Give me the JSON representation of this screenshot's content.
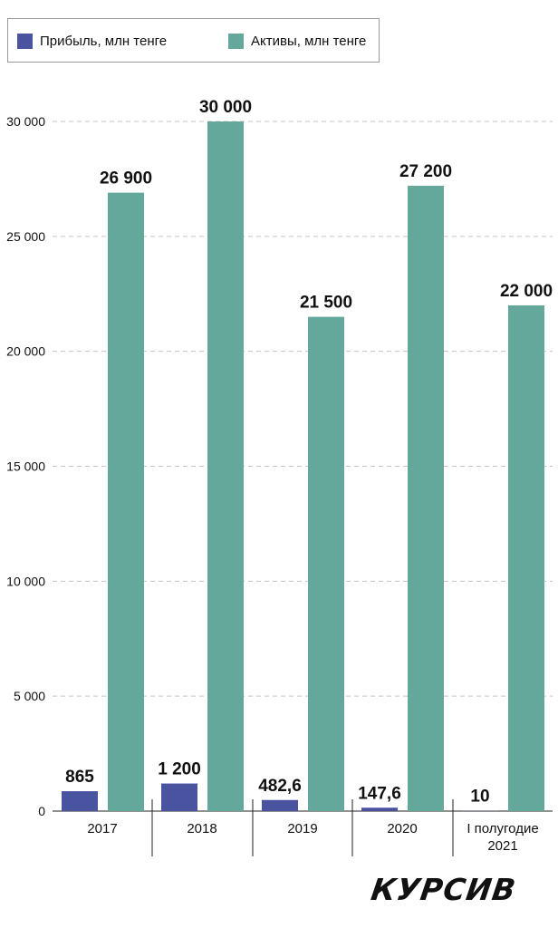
{
  "legend": [
    {
      "label": "Прибыль, млн тенге",
      "color": "#4a53a0"
    },
    {
      "label": "Активы, млн тенге",
      "color": "#64a79b"
    }
  ],
  "logo": "КУРСИВ",
  "chart_data": {
    "type": "bar",
    "categories": [
      "2017",
      "2018",
      "2019",
      "2020",
      "I полугодие|2021"
    ],
    "series": [
      {
        "name": "Прибыль, млн тенге",
        "values": [
          865,
          1200,
          482.6,
          147.6,
          10
        ],
        "labels": [
          "865",
          "1 200",
          "482,6",
          "147,6",
          "10"
        ],
        "color": "#4a53a0"
      },
      {
        "name": "Активы, млн тенге",
        "values": [
          26900,
          30000,
          21500,
          27200,
          22000
        ],
        "labels": [
          "26 900",
          "30 000",
          "21 500",
          "27 200",
          "22 000"
        ],
        "color": "#64a79b"
      }
    ],
    "yticks": [
      0,
      5000,
      10000,
      15000,
      20000,
      25000,
      30000
    ],
    "ytick_labels": [
      "0",
      "5 000",
      "10 000",
      "15 000",
      "20 000",
      "25 000",
      "30 000"
    ],
    "ylim": [
      0,
      30000
    ],
    "grid": true,
    "legend_position": "top-left"
  }
}
